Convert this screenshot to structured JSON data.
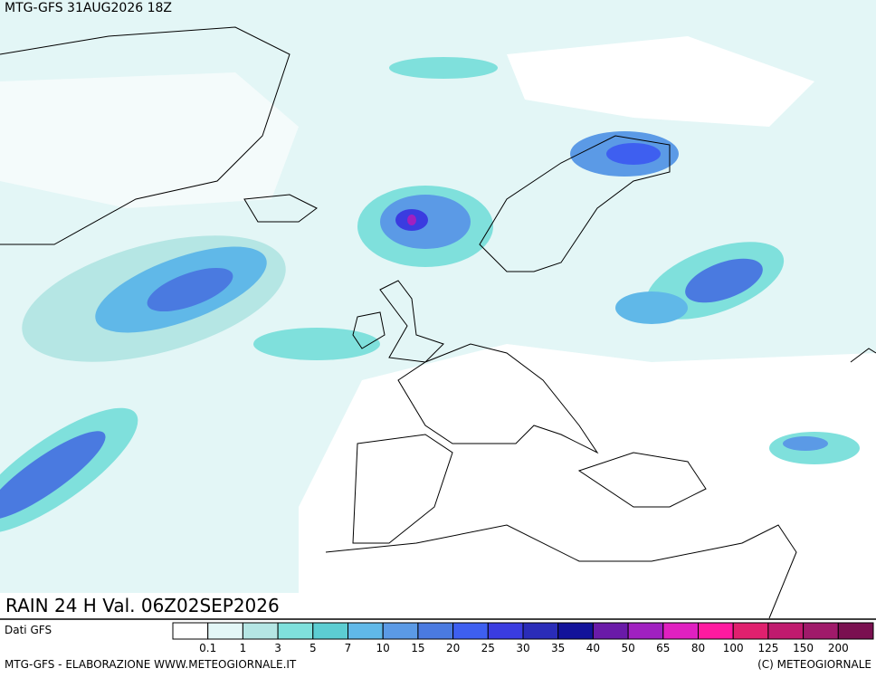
{
  "header": {
    "title": "MTG-GFS 31AUG2026 18Z"
  },
  "map": {
    "caption": "RAIN 24 H Val. 06Z02SEP2026"
  },
  "legend": {
    "source": "Dati GFS",
    "labels": [
      0.1,
      1,
      3,
      5,
      7,
      10,
      15,
      20,
      25,
      30,
      35,
      40,
      50,
      65,
      80,
      100,
      125,
      150,
      200
    ],
    "colors": [
      "#ffffff",
      "#e3f6f6",
      "#b5e6e4",
      "#7fe0dc",
      "#5ccdd2",
      "#60b8e8",
      "#5b9ae6",
      "#4a7ae0",
      "#3e5ff0",
      "#3a3ce0",
      "#2a2cb8",
      "#12129a",
      "#6a1aa8",
      "#a020c0",
      "#e020c0",
      "#ff1aa0",
      "#e0206e",
      "#c01a6e",
      "#a01a6a",
      "#7a1050"
    ]
  },
  "footer": {
    "left": "MTG-GFS - ELABORAZIONE WWW.METEOGIORNALE.IT",
    "right": "(C) METEOGIORNALE"
  }
}
